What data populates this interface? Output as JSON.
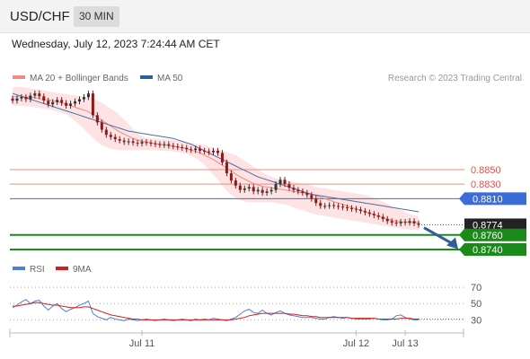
{
  "header": {
    "symbol": "USD/CHF",
    "timeframe": "30 MIN",
    "datetime": "Wednesday, July 12, 2023 7:24:44 AM CET"
  },
  "colors": {
    "ma20": "#f28b82",
    "band_fill": "#fde0e0",
    "ma50": "#4a6fa5",
    "resistance": "#f28b82",
    "pivot": "#3b6dd8",
    "support": "#1a8a1a",
    "current_price": "#222222",
    "candle_up": "#333333",
    "candle_down": "#8b1a1a",
    "rsi": "#4f7fd6",
    "rsi_ma": "#d21f1f",
    "arrow": "#2f5f98"
  },
  "chart_data": [
    {
      "type": "line",
      "legend": [
        {
          "name": "MA 20 + Bollinger Bands",
          "color": "#f28b82"
        },
        {
          "name": "MA 50",
          "color": "#2f5f98"
        }
      ],
      "attribution": "Research © 2023 Trading Central",
      "ylim": [
        0.8735,
        0.8965
      ],
      "x_tick_labels": [
        {
          "label": "Jul 11",
          "i": 29
        },
        {
          "label": "Jul 12",
          "i": 77
        },
        {
          "label": "Jul 13",
          "i": 88
        }
      ],
      "candle_count": 92,
      "close": [
        0.8945,
        0.8948,
        0.895,
        0.8947,
        0.8952,
        0.8955,
        0.8951,
        0.8945,
        0.894,
        0.8943,
        0.8946,
        0.8942,
        0.8938,
        0.8941,
        0.8944,
        0.8947,
        0.895,
        0.8955,
        0.8925,
        0.8915,
        0.8905,
        0.8898,
        0.8895,
        0.8892,
        0.889,
        0.8888,
        0.8889,
        0.8887,
        0.8886,
        0.8888,
        0.8887,
        0.8886,
        0.8885,
        0.8884,
        0.8885,
        0.8883,
        0.8882,
        0.8881,
        0.888,
        0.8878,
        0.8877,
        0.8879,
        0.8876,
        0.8875,
        0.8874,
        0.8876,
        0.8873,
        0.886,
        0.8845,
        0.8835,
        0.8828,
        0.8822,
        0.8824,
        0.8826,
        0.882,
        0.8822,
        0.8818,
        0.882,
        0.8822,
        0.883,
        0.8836,
        0.883,
        0.8825,
        0.8822,
        0.882,
        0.8818,
        0.8815,
        0.881,
        0.8804,
        0.88,
        0.88,
        0.8801,
        0.88,
        0.8799,
        0.8798,
        0.8797,
        0.8796,
        0.8795,
        0.8793,
        0.8791,
        0.8789,
        0.8787,
        0.8785,
        0.8782,
        0.8779,
        0.8777,
        0.8776,
        0.8778,
        0.8777,
        0.8779,
        0.8776,
        0.8774
      ],
      "ma20": [
        0.895,
        0.8951,
        0.8951,
        0.895,
        0.895,
        0.8949,
        0.8948,
        0.8947,
        0.8946,
        0.8945,
        0.8944,
        0.8942,
        0.894,
        0.8938,
        0.8936,
        0.8934,
        0.8932,
        0.893,
        0.8926,
        0.8922,
        0.8918,
        0.8914,
        0.891,
        0.8906,
        0.8902,
        0.8899,
        0.8896,
        0.8893,
        0.8891,
        0.8889,
        0.8888,
        0.8887,
        0.8886,
        0.8885,
        0.8884,
        0.8883,
        0.8882,
        0.8881,
        0.888,
        0.8879,
        0.8877,
        0.8875,
        0.8873,
        0.887,
        0.8867,
        0.8864,
        0.886,
        0.8856,
        0.8852,
        0.8848,
        0.8844,
        0.884,
        0.8837,
        0.8834,
        0.8831,
        0.8829,
        0.8827,
        0.8826,
        0.8825,
        0.8824,
        0.8823,
        0.8822,
        0.8821,
        0.882,
        0.8819,
        0.8818,
        0.8817,
        0.8816,
        0.8814,
        0.8812,
        0.881,
        0.8808,
        0.8806,
        0.8804,
        0.8802,
        0.88,
        0.8798,
        0.8796,
        0.8794,
        0.8792,
        0.879,
        0.8788,
        0.8786,
        0.8784,
        0.8782,
        0.878,
        0.8779,
        0.8778,
        0.8778,
        0.8777,
        0.8777,
        0.8777
      ],
      "bb_upper": [
        0.8963,
        0.8964,
        0.8964,
        0.8963,
        0.8962,
        0.8961,
        0.896,
        0.8959,
        0.8958,
        0.8957,
        0.8956,
        0.8955,
        0.8954,
        0.8953,
        0.8952,
        0.8951,
        0.895,
        0.895,
        0.8948,
        0.8945,
        0.8942,
        0.8938,
        0.8934,
        0.893,
        0.8925,
        0.8919,
        0.8913,
        0.8906,
        0.89,
        0.8896,
        0.8894,
        0.8893,
        0.8893,
        0.8892,
        0.8892,
        0.8891,
        0.8891,
        0.889,
        0.8889,
        0.8888,
        0.8887,
        0.8886,
        0.8885,
        0.8884,
        0.8882,
        0.888,
        0.8878,
        0.8876,
        0.8874,
        0.8872,
        0.887,
        0.8866,
        0.8862,
        0.8858,
        0.8854,
        0.885,
        0.8846,
        0.8843,
        0.884,
        0.8838,
        0.8836,
        0.8835,
        0.8834,
        0.8833,
        0.8832,
        0.8831,
        0.883,
        0.8828,
        0.8826,
        0.8825,
        0.8824,
        0.8823,
        0.8822,
        0.8821,
        0.882,
        0.8819,
        0.8818,
        0.8817,
        0.8816,
        0.8815,
        0.8813,
        0.8811,
        0.8809,
        0.8806,
        0.8803,
        0.88,
        0.8797,
        0.8794,
        0.8791,
        0.8789,
        0.8787,
        0.8786
      ],
      "bb_lower": [
        0.8938,
        0.8938,
        0.8938,
        0.8937,
        0.8937,
        0.8936,
        0.8935,
        0.8934,
        0.8933,
        0.8932,
        0.893,
        0.8928,
        0.8926,
        0.8922,
        0.8917,
        0.8912,
        0.8906,
        0.89,
        0.8894,
        0.8888,
        0.8884,
        0.8881,
        0.8879,
        0.8878,
        0.8877,
        0.8877,
        0.8877,
        0.8877,
        0.8877,
        0.8877,
        0.8877,
        0.8877,
        0.8877,
        0.8876,
        0.8876,
        0.8876,
        0.8875,
        0.8874,
        0.8873,
        0.8872,
        0.8869,
        0.8866,
        0.8862,
        0.8856,
        0.885,
        0.8843,
        0.8836,
        0.8828,
        0.8821,
        0.8815,
        0.8811,
        0.8808,
        0.8806,
        0.8805,
        0.8805,
        0.8805,
        0.8805,
        0.8805,
        0.8805,
        0.8804,
        0.8803,
        0.8802,
        0.88,
        0.8798,
        0.8796,
        0.8794,
        0.8792,
        0.879,
        0.8788,
        0.8787,
        0.8786,
        0.8785,
        0.8784,
        0.8783,
        0.8782,
        0.8781,
        0.878,
        0.8779,
        0.8778,
        0.8777,
        0.8776,
        0.8775,
        0.8774,
        0.8773,
        0.8772,
        0.8771,
        0.877,
        0.8769,
        0.8768,
        0.8767,
        0.8767,
        0.8766
      ],
      "ma50": [
        0.8955,
        0.8953,
        0.8951,
        0.8949,
        0.8947,
        0.8945,
        0.8943,
        0.8941,
        0.8939,
        0.8937,
        0.8935,
        0.8933,
        0.8931,
        0.8929,
        0.8927,
        0.8925,
        0.8923,
        0.8921,
        0.8919,
        0.8917,
        0.8915,
        0.8913,
        0.8911,
        0.8909,
        0.8907,
        0.8905,
        0.8903,
        0.8902,
        0.8901,
        0.89,
        0.8899,
        0.8898,
        0.8897,
        0.8896,
        0.8895,
        0.8894,
        0.8893,
        0.8891,
        0.8889,
        0.8887,
        0.8885,
        0.8882,
        0.8879,
        0.8876,
        0.8873,
        0.887,
        0.8867,
        0.8864,
        0.8861,
        0.8858,
        0.8855,
        0.8852,
        0.8849,
        0.8846,
        0.8843,
        0.884,
        0.8838,
        0.8836,
        0.8834,
        0.8832,
        0.883,
        0.8828,
        0.8826,
        0.8824,
        0.8822,
        0.882,
        0.8818,
        0.8816,
        0.8815,
        0.8814,
        0.8813,
        0.8812,
        0.8811,
        0.881,
        0.8809,
        0.8808,
        0.8807,
        0.8806,
        0.8805,
        0.8804,
        0.8803,
        0.8802,
        0.8801,
        0.88,
        0.8799,
        0.8798,
        0.8797,
        0.8796,
        0.8795,
        0.8794,
        0.8793,
        0.8792
      ],
      "levels": [
        {
          "label": "0.8850",
          "value": 0.885,
          "kind": "resistance"
        },
        {
          "label": "0.8830",
          "value": 0.883,
          "kind": "resistance"
        },
        {
          "label": "0.8810",
          "value": 0.881,
          "kind": "pivot"
        },
        {
          "label": "0.8774",
          "value": 0.8774,
          "kind": "current"
        },
        {
          "label": "0.8760",
          "value": 0.876,
          "kind": "support"
        },
        {
          "label": "0.8740",
          "value": 0.874,
          "kind": "support"
        }
      ],
      "arrow": {
        "from": 0.877,
        "to": 0.8743
      }
    },
    {
      "type": "line",
      "legend": [
        {
          "name": "RSI",
          "color": "#4f7fd6"
        },
        {
          "name": "9MA",
          "color": "#d21f1f"
        }
      ],
      "ylim": [
        15,
        80
      ],
      "y_ticks": [
        "70",
        "50",
        "30"
      ],
      "rsi": [
        45,
        48,
        52,
        55,
        50,
        53,
        54,
        47,
        42,
        47,
        50,
        44,
        40,
        43,
        45,
        48,
        50,
        53,
        38,
        34,
        32,
        30,
        33,
        31,
        30,
        29,
        31,
        30,
        29,
        30,
        31,
        30,
        29,
        30,
        31,
        30,
        29,
        30,
        31,
        30,
        29,
        31,
        30,
        31,
        30,
        32,
        31,
        30,
        29,
        31,
        33,
        37,
        41,
        43,
        39,
        38,
        42,
        38,
        36,
        39,
        41,
        38,
        36,
        35,
        34,
        33,
        33,
        33,
        32,
        31,
        31,
        33,
        34,
        33,
        32,
        33,
        32,
        31,
        31,
        31,
        31,
        32,
        31,
        30,
        30,
        31,
        35,
        36,
        33,
        31,
        30,
        30
      ],
      "rsi_ma": [
        47,
        47,
        48,
        49,
        50,
        51,
        51,
        50,
        49,
        48,
        48,
        47,
        46,
        45,
        45,
        45,
        46,
        46,
        44,
        42,
        40,
        38,
        36,
        35,
        34,
        33,
        32,
        31,
        31,
        30,
        30,
        30,
        30,
        30,
        30,
        30,
        30,
        30,
        30,
        30,
        30,
        30,
        30,
        30,
        30,
        30,
        30,
        30,
        30,
        30,
        31,
        32,
        33,
        35,
        36,
        37,
        38,
        38,
        38,
        38,
        38,
        38,
        37,
        37,
        36,
        35,
        35,
        34,
        34,
        33,
        33,
        33,
        33,
        33,
        33,
        33,
        32,
        32,
        32,
        32,
        32,
        32,
        31,
        31,
        31,
        31,
        31,
        32,
        32,
        32,
        31,
        31
      ]
    }
  ]
}
